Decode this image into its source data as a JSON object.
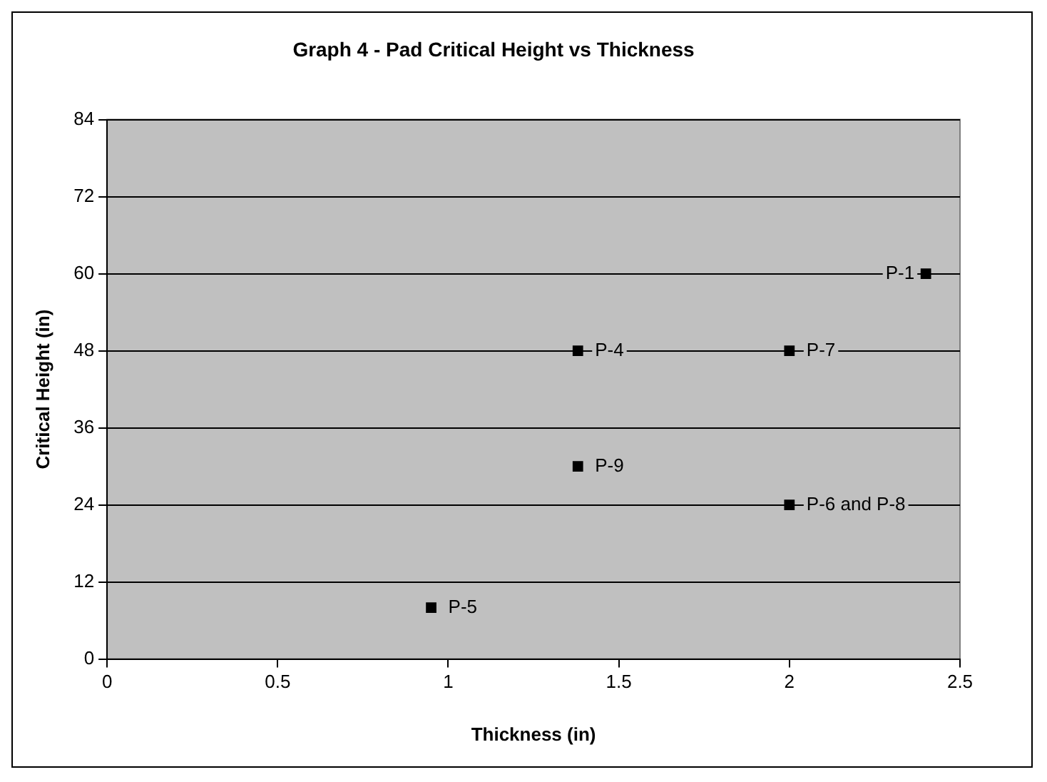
{
  "chart_data": {
    "type": "scatter",
    "title": "Graph 4 - Pad Critical Height vs Thickness",
    "xlabel": "Thickness (in)",
    "ylabel": "Critical Height (in)",
    "x": [
      0.95,
      1.38,
      1.38,
      2,
      2,
      2.4
    ],
    "series": [
      {
        "color": "#000000",
        "values": [
          8,
          30,
          48,
          48,
          24,
          60
        ]
      }
    ],
    "xlim": [
      0,
      2.5
    ],
    "xticks": [
      0,
      0.5,
      1,
      1.5,
      2,
      2.5
    ],
    "ylim": [
      0,
      84
    ],
    "yticks": [
      0,
      12,
      24,
      36,
      48,
      60,
      72,
      84
    ],
    "grid": "y",
    "legend": false,
    "marker": "square",
    "annotations": [
      {
        "text": "P-5",
        "x": 0.95,
        "y": 8
      },
      {
        "text": "P-9",
        "x": 1.38,
        "y": 30
      },
      {
        "text": "P-4",
        "x": 1.38,
        "y": 48
      },
      {
        "text": "P-7",
        "x": 2,
        "y": 48
      },
      {
        "text": "P-6 and P-8",
        "x": 2,
        "y": 24
      },
      {
        "text": "P-1",
        "x": 2.4,
        "y": 60
      }
    ]
  }
}
